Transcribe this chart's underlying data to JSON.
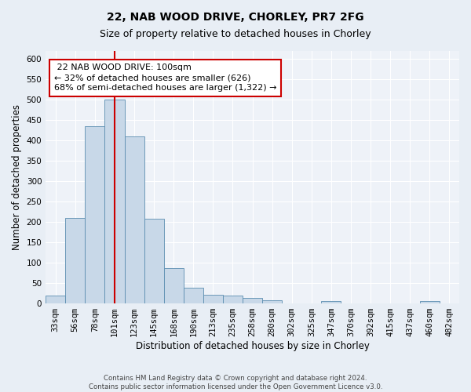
{
  "title": "22, NAB WOOD DRIVE, CHORLEY, PR7 2FG",
  "subtitle": "Size of property relative to detached houses in Chorley",
  "xlabel": "Distribution of detached houses by size in Chorley",
  "ylabel": "Number of detached properties",
  "footer_line1": "Contains HM Land Registry data © Crown copyright and database right 2024.",
  "footer_line2": "Contains public sector information licensed under the Open Government Licence v3.0.",
  "bin_labels": [
    "33sqm",
    "56sqm",
    "78sqm",
    "101sqm",
    "123sqm",
    "145sqm",
    "168sqm",
    "190sqm",
    "213sqm",
    "235sqm",
    "258sqm",
    "280sqm",
    "302sqm",
    "325sqm",
    "347sqm",
    "370sqm",
    "392sqm",
    "415sqm",
    "437sqm",
    "460sqm",
    "482sqm"
  ],
  "bar_heights": [
    18,
    210,
    435,
    500,
    410,
    207,
    85,
    37,
    20,
    18,
    12,
    7,
    0,
    0,
    5,
    0,
    0,
    0,
    0,
    5,
    0
  ],
  "bar_color": "#c8d8e8",
  "bar_edge_color": "#5b8db0",
  "property_label": "22 NAB WOOD DRIVE: 100sqm",
  "smaller_pct": 32,
  "smaller_count": 626,
  "larger_pct": 68,
  "larger_count": 1322,
  "vline_color": "#cc0000",
  "annotation_box_color": "#cc0000",
  "vline_x": 3.0,
  "ylim": [
    0,
    620
  ],
  "yticks": [
    0,
    50,
    100,
    150,
    200,
    250,
    300,
    350,
    400,
    450,
    500,
    550,
    600
  ],
  "background_color": "#e8eef5",
  "plot_background_color": "#eef2f8",
  "grid_color": "#ffffff",
  "title_fontsize": 10,
  "subtitle_fontsize": 9,
  "axis_label_fontsize": 8.5,
  "tick_fontsize": 7.5,
  "annotation_fontsize": 8
}
